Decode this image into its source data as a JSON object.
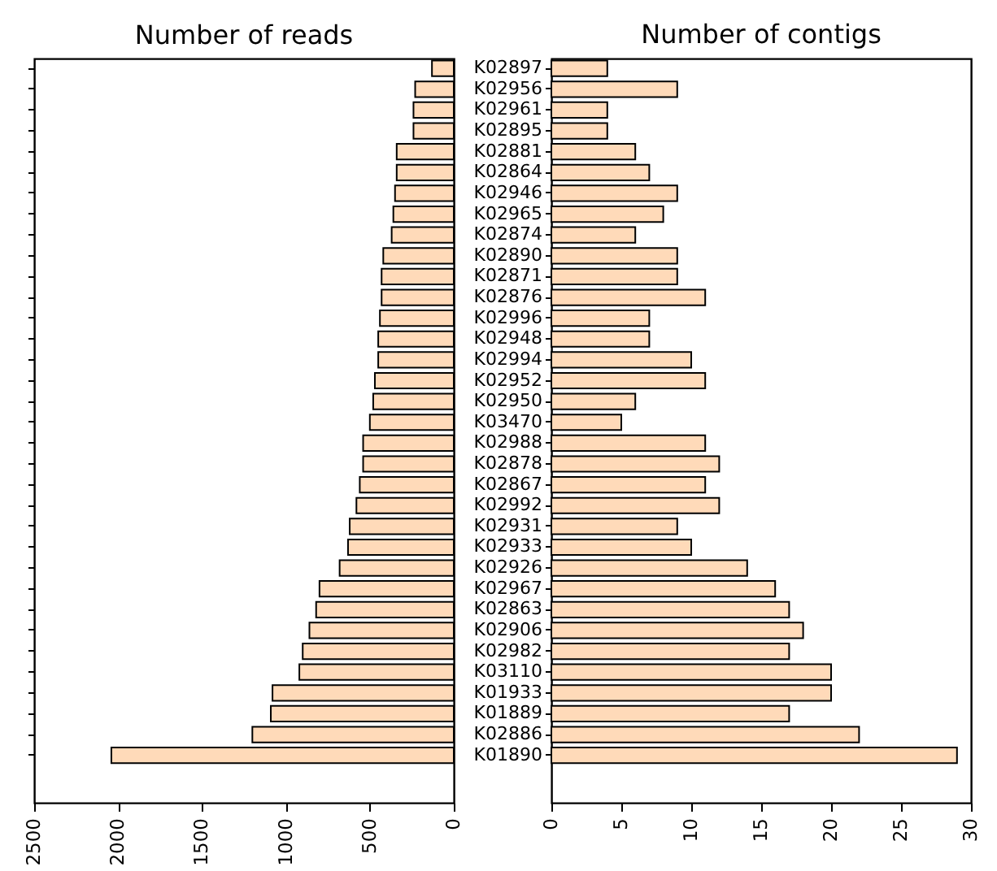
{
  "chart_data": [
    {
      "type": "bar",
      "orientation": "horizontal",
      "title": "Number of reads",
      "categories": [
        "K02897",
        "K02956",
        "K02961",
        "K02895",
        "K02881",
        "K02864",
        "K02946",
        "K02965",
        "K02874",
        "K02890",
        "K02871",
        "K02876",
        "K02996",
        "K02948",
        "K02994",
        "K02952",
        "K02950",
        "K03470",
        "K02988",
        "K02878",
        "K02867",
        "K02992",
        "K02931",
        "K02933",
        "K02926",
        "K02967",
        "K02863",
        "K02906",
        "K02982",
        "K03110",
        "K01933",
        "K01889",
        "K02886",
        "K01890"
      ],
      "values": [
        130,
        230,
        240,
        240,
        340,
        340,
        350,
        360,
        370,
        420,
        430,
        430,
        440,
        450,
        450,
        470,
        480,
        500,
        540,
        540,
        560,
        580,
        620,
        630,
        680,
        800,
        820,
        860,
        900,
        920,
        1080,
        1090,
        1200,
        2040
      ],
      "color": "#ffdab9",
      "xlim": [
        2500,
        0
      ],
      "xticks": [
        2500,
        2000,
        1500,
        1000,
        500,
        0
      ],
      "tick_labels": "x",
      "grid": false
    },
    {
      "type": "bar",
      "orientation": "horizontal",
      "title": "Number of contigs",
      "categories": [
        "K02897",
        "K02956",
        "K02961",
        "K02895",
        "K02881",
        "K02864",
        "K02946",
        "K02965",
        "K02874",
        "K02890",
        "K02871",
        "K02876",
        "K02996",
        "K02948",
        "K02994",
        "K02952",
        "K02950",
        "K03470",
        "K02988",
        "K02878",
        "K02867",
        "K02992",
        "K02931",
        "K02933",
        "K02926",
        "K02967",
        "K02863",
        "K02906",
        "K02982",
        "K03110",
        "K01933",
        "K01889",
        "K02886",
        "K01890"
      ],
      "values": [
        4,
        9,
        4,
        4,
        6,
        7,
        9,
        8,
        6,
        9,
        9,
        11,
        7,
        7,
        10,
        11,
        6,
        5,
        11,
        12,
        11,
        12,
        9,
        10,
        14,
        16,
        17,
        18,
        17,
        20,
        20,
        17,
        22,
        29
      ],
      "color": "#ffdab9",
      "xlim": [
        0,
        30
      ],
      "xticks": [
        0,
        5,
        10,
        15,
        20,
        25,
        30
      ],
      "grid": false
    }
  ]
}
